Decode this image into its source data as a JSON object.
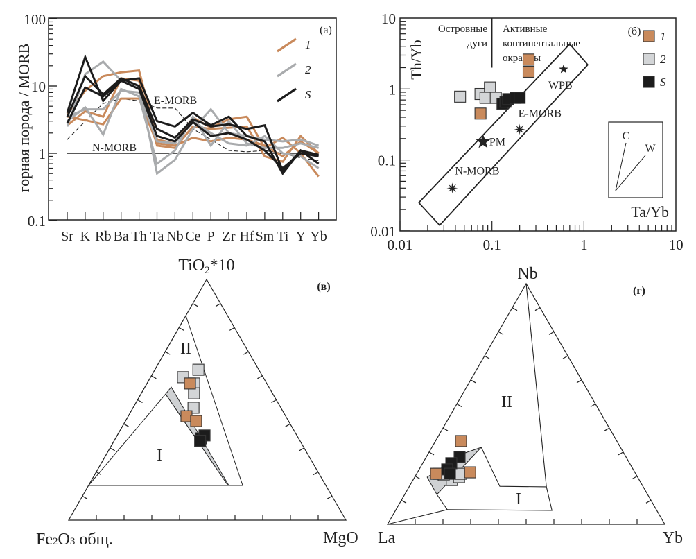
{
  "colors": {
    "group1": "#c98a5c",
    "group2": "#d3d5d7",
    "group2_line": "#a9abad",
    "groupS": "#1c1c1c"
  },
  "chart_data": [
    {
      "type": "line",
      "panel_label": "(a)",
      "ylabel": "горная порода / MORB",
      "yscale": "log",
      "ylim": [
        0.1,
        100
      ],
      "yticks": [
        {
          "v": 0.1,
          "label": "0.1"
        },
        {
          "v": 1,
          "label": "1"
        },
        {
          "v": 10,
          "label": "10"
        },
        {
          "v": 100,
          "label": "100"
        }
      ],
      "categories": [
        "Sr",
        "K",
        "Rb",
        "Ba",
        "Th",
        "Ta",
        "Nb",
        "Ce",
        "P",
        "Zr",
        "Hf",
        "Sm",
        "Ti",
        "Y",
        "Yb"
      ],
      "series": [
        {
          "name": "1",
          "color_key": "group1",
          "lines": [
            [
              3.8,
              8.5,
              14,
              16,
              17,
              1.6,
              1.4,
              3.4,
              2.4,
              3.2,
              3.5,
              1.2,
              1.7,
              1.0,
              0.45
            ],
            [
              2.6,
              4.2,
              3.5,
              13,
              12,
              1.3,
              1.2,
              2.5,
              2.3,
              2.4,
              2.5,
              0.9,
              0.75,
              1.8,
              1.0
            ],
            [
              3.5,
              3.1,
              2.7,
              6.5,
              6.5,
              1.4,
              1.3,
              1.7,
              1.5,
              1.7,
              1.6,
              1.3,
              0.9,
              1.5,
              1.0
            ]
          ]
        },
        {
          "name": "2",
          "color_key": "group2_line",
          "lines": [
            [
              2.5,
              15,
              23,
              12,
              10,
              0.5,
              0.8,
              2.3,
              4.5,
              2.0,
              1.8,
              1.6,
              1.5,
              1.6,
              1.3
            ],
            [
              3.0,
              4.8,
              1.9,
              9,
              7,
              0.7,
              1.1,
              3.5,
              1.3,
              3.0,
              1.4,
              1.2,
              1.2,
              1.4,
              1.2
            ],
            [
              3.5,
              4.5,
              4.5,
              8.5,
              8,
              1.5,
              1.4,
              3.0,
              2.0,
              1.4,
              1.3,
              1.8,
              1.0,
              0.9,
              0.6
            ]
          ]
        },
        {
          "name": "S",
          "color_key": "groupS",
          "lines": [
            [
              4.0,
              27,
              6,
              12,
              13,
              3.0,
              2.5,
              4.0,
              2.6,
              3.5,
              1.8,
              1.5,
              0.5,
              1.1,
              0.7
            ],
            [
              3.5,
              14,
              7.5,
              13,
              10,
              2.3,
              1.7,
              3.2,
              2.5,
              2.7,
              2.3,
              2.6,
              0.55,
              1.1,
              0.95
            ],
            [
              2.8,
              9.5,
              7,
              12,
              9,
              1.8,
              1.5,
              2.9,
              1.8,
              2.0,
              1.6,
              1.1,
              0.6,
              1.0,
              0.9
            ]
          ]
        }
      ],
      "references": [
        {
          "name": "E-MORB",
          "style": "dashed",
          "values": [
            1.6,
            3.0,
            5.5,
            6.5,
            6.0,
            4.7,
            4.7,
            2.3,
            1.6,
            1.1,
            1.05,
            1.1,
            1.0,
            0.85,
            0.78
          ]
        },
        {
          "name": "N-MORB",
          "style": "solid",
          "values": [
            1,
            1,
            1,
            1,
            1,
            1,
            1,
            1,
            1,
            1,
            1,
            1,
            1,
            1,
            1
          ]
        }
      ],
      "legend": [
        "1",
        "2",
        "S"
      ],
      "legend_position": "top-right"
    },
    {
      "type": "scatter",
      "panel_label": "(б)",
      "xlabel": "Ta/Yb",
      "ylabel": "Th/Yb",
      "xscale": "log",
      "yscale": "log",
      "xlim": [
        0.01,
        10
      ],
      "ylim": [
        0.01,
        10
      ],
      "xticks": [
        {
          "v": 0.01,
          "label": "0.01"
        },
        {
          "v": 0.1,
          "label": "0.1"
        },
        {
          "v": 1,
          "label": "1"
        },
        {
          "v": 10,
          "label": "10"
        }
      ],
      "yticks": [
        {
          "v": 0.01,
          "label": "0.01"
        },
        {
          "v": 0.1,
          "label": "0.1"
        },
        {
          "v": 1,
          "label": "1"
        },
        {
          "v": 10,
          "label": "10"
        }
      ],
      "series": [
        {
          "name": "2",
          "color_key": "group2",
          "points": [
            [
              0.045,
              0.78
            ],
            [
              0.075,
              0.85
            ],
            [
              0.095,
              1.05
            ],
            [
              0.085,
              0.75
            ],
            [
              0.11,
              0.75
            ]
          ]
        },
        {
          "name": "1",
          "color_key": "group1",
          "points": [
            [
              0.25,
              2.6
            ],
            [
              0.25,
              1.75
            ],
            [
              0.075,
              0.45
            ]
          ]
        },
        {
          "name": "S",
          "color_key": "groupS",
          "points": [
            [
              0.13,
              0.62
            ],
            [
              0.14,
              0.66
            ],
            [
              0.15,
              0.72
            ],
            [
              0.18,
              0.75
            ],
            [
              0.2,
              0.75
            ]
          ]
        }
      ],
      "references": [
        {
          "name": "WPB",
          "x": 0.6,
          "y": 1.9,
          "marker": "star-small"
        },
        {
          "name": "E-MORB",
          "x": 0.2,
          "y": 0.27,
          "marker": "asterisk"
        },
        {
          "name": "PM",
          "x": 0.08,
          "y": 0.18,
          "marker": "star-large"
        },
        {
          "name": "N-MORB",
          "x": 0.037,
          "y": 0.04,
          "marker": "asterisk"
        }
      ],
      "mantle_array": [
        [
          0.016,
          0.025
        ],
        [
          0.027,
          0.012
        ],
        [
          1.1,
          2.2
        ],
        [
          0.7,
          4.3
        ]
      ],
      "divider": {
        "x": 0.1,
        "y_from": 2,
        "y_to": 10
      },
      "regions": {
        "left": [
          "Островные",
          "дуги"
        ],
        "right": [
          "Активные",
          "континентальные",
          "окраины"
        ]
      },
      "inset_vectors": [
        "C",
        "W"
      ],
      "legend": [
        "1",
        "2",
        "S"
      ],
      "legend_position": "top-right"
    },
    {
      "type": "ternary",
      "panel_label": "(в)",
      "apices": {
        "top": "TiO2*10",
        "left": "Fe2O3 общ.",
        "right": "MgO"
      },
      "apex_display": {
        "top_main": "TiO",
        "top_sub": "2",
        "top_rest": "*10",
        "left_a": "Fe",
        "left_s1": "2",
        "left_b": "O",
        "left_s2": "3",
        "left_c": " общ."
      },
      "point_format": "[top, left, right] fractions",
      "fields": [
        {
          "name": "II",
          "polygon": [
            [
              0.85,
              0.15,
              0
            ],
            [
              0.144,
              0.3,
              0.556
            ],
            [
              0.144,
              0.856,
              0
            ]
          ]
        },
        {
          "name": "I",
          "polygon": [
            [
              0.524,
              0.387,
              0.089
            ],
            [
              0.144,
              0.353,
              0.503
            ],
            [
              0.144,
              0.856,
              0
            ]
          ]
        }
      ],
      "grey_band": [
        [
          0.524,
          0.387,
          0.089
        ],
        [
          0.553,
          0.352,
          0.095
        ],
        [
          0.144,
          0.35,
          0.506
        ],
        [
          0.144,
          0.353,
          0.503
        ]
      ],
      "series": [
        {
          "name": "2",
          "color_key": "group2",
          "points": [
            [
              0.625,
              0.218,
              0.157
            ],
            [
              0.594,
              0.289,
              0.117
            ],
            [
              0.568,
              0.262,
              0.17
            ],
            [
              0.527,
              0.283,
              0.19
            ],
            [
              0.467,
              0.315,
              0.218
            ]
          ]
        },
        {
          "name": "1",
          "color_key": "group1",
          "points": [
            [
              0.568,
              0.277,
              0.155
            ],
            [
              0.432,
              0.358,
              0.21
            ],
            [
              0.412,
              0.333,
              0.255
            ]
          ]
        },
        {
          "name": "S",
          "color_key": "groupS",
          "points": [
            [
              0.34,
              0.352,
              0.308
            ],
            [
              0.352,
              0.333,
              0.315
            ],
            [
              0.33,
              0.36,
              0.31
            ]
          ]
        }
      ]
    },
    {
      "type": "ternary",
      "panel_label": "(г)",
      "apices": {
        "top": "Nb",
        "left": "La",
        "right": "Yb"
      },
      "point_format": "[top, left, right] fractions",
      "field_labels": [
        "II",
        "I"
      ],
      "lines": [
        [
          [
            1,
            0,
            0
          ],
          [
            0.156,
            0.349,
            0.495
          ],
          [
            0.058,
            0.378,
            0.564
          ],
          [
            0.061,
            0.754,
            0.185
          ],
          [
            0,
            1,
            0
          ]
        ],
        [
          [
            0.061,
            0.754,
            0.185
          ],
          [
            0.124,
            0.76,
            0.116
          ]
        ],
        [
          [
            0.32,
            0.502,
            0.178
          ],
          [
            0.158,
            0.516,
            0.326
          ],
          [
            0.156,
            0.349,
            0.495
          ]
        ]
      ],
      "grey_band": [
        [
          0.196,
          0.759,
          0.045
        ],
        [
          0.124,
          0.76,
          0.116
        ],
        [
          0.32,
          0.502,
          0.178
        ],
        [
          0.294,
          0.58,
          0.126
        ]
      ],
      "series": [
        {
          "name": "2",
          "color_key": "group2",
          "points": [
            [
              0.184,
              0.676,
              0.14
            ],
            [
              0.196,
              0.644,
              0.16
            ],
            [
              0.205,
              0.695,
              0.1
            ],
            [
              0.21,
              0.63,
              0.16
            ],
            [
              0.21,
              0.71,
              0.08
            ]
          ]
        },
        {
          "name": "S",
          "color_key": "groupS",
          "points": [
            [
              0.28,
              0.6,
              0.12
            ],
            [
              0.254,
              0.643,
              0.103
            ],
            [
              0.228,
              0.671,
              0.101
            ],
            [
              0.21,
              0.67,
              0.12
            ]
          ]
        },
        {
          "name": "1",
          "color_key": "group1",
          "points": [
            [
              0.346,
              0.562,
              0.092
            ],
            [
              0.21,
              0.72,
              0.07
            ],
            [
              0.216,
              0.594,
              0.19
            ]
          ]
        }
      ]
    }
  ]
}
